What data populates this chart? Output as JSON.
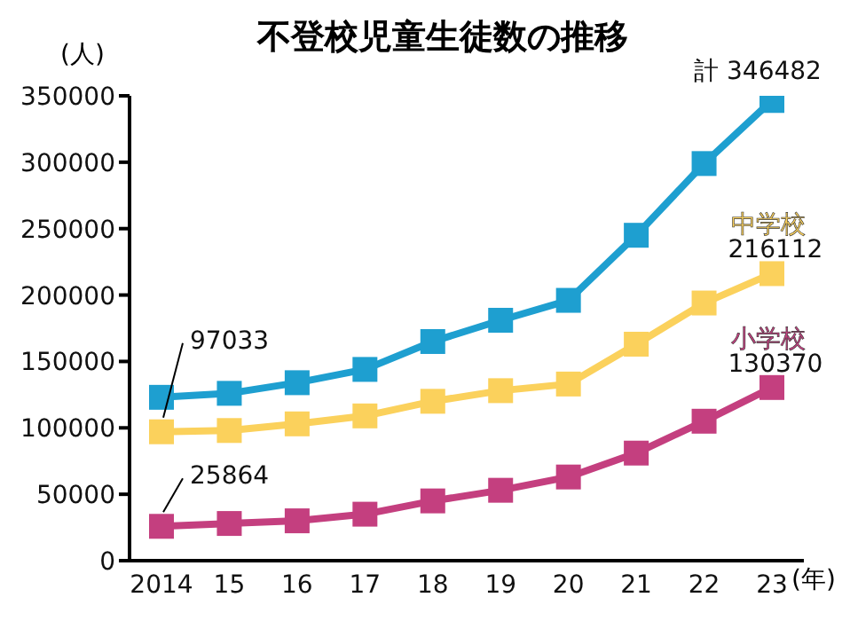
{
  "chart_data": {
    "type": "line",
    "title": "不登校児童生徒数の推移",
    "xlabel": "(年)",
    "ylabel": "(人)",
    "categories": [
      "2014",
      "15",
      "16",
      "17",
      "18",
      "19",
      "20",
      "21",
      "22",
      "23"
    ],
    "series": [
      {
        "name": "計",
        "color": "#1e9fd0",
        "values": [
          123000,
          126000,
          134000,
          144000,
          165000,
          181000,
          196000,
          245000,
          299000,
          346482
        ],
        "value_labels": [
          null,
          null,
          null,
          null,
          null,
          null,
          null,
          null,
          null,
          "346482"
        ]
      },
      {
        "name": "中学校",
        "color": "#fbd15c",
        "values": [
          97033,
          98000,
          103000,
          109000,
          120000,
          128000,
          133000,
          163000,
          194000,
          216112
        ],
        "value_labels": [
          "97033",
          null,
          null,
          null,
          null,
          null,
          null,
          null,
          null,
          "216112"
        ]
      },
      {
        "name": "小学校",
        "color": "#c43f7f",
        "values": [
          25864,
          28000,
          30000,
          35000,
          45000,
          53000,
          63000,
          81000,
          105000,
          130370
        ],
        "value_labels": [
          "25864",
          null,
          null,
          null,
          null,
          null,
          null,
          null,
          null,
          "130370"
        ]
      }
    ],
    "ylim": [
      0,
      350000
    ],
    "yticks": [
      0,
      50000,
      100000,
      150000,
      200000,
      250000,
      300000,
      350000
    ],
    "grid": false,
    "legend": false,
    "marker": "square",
    "line_style": "solid"
  }
}
